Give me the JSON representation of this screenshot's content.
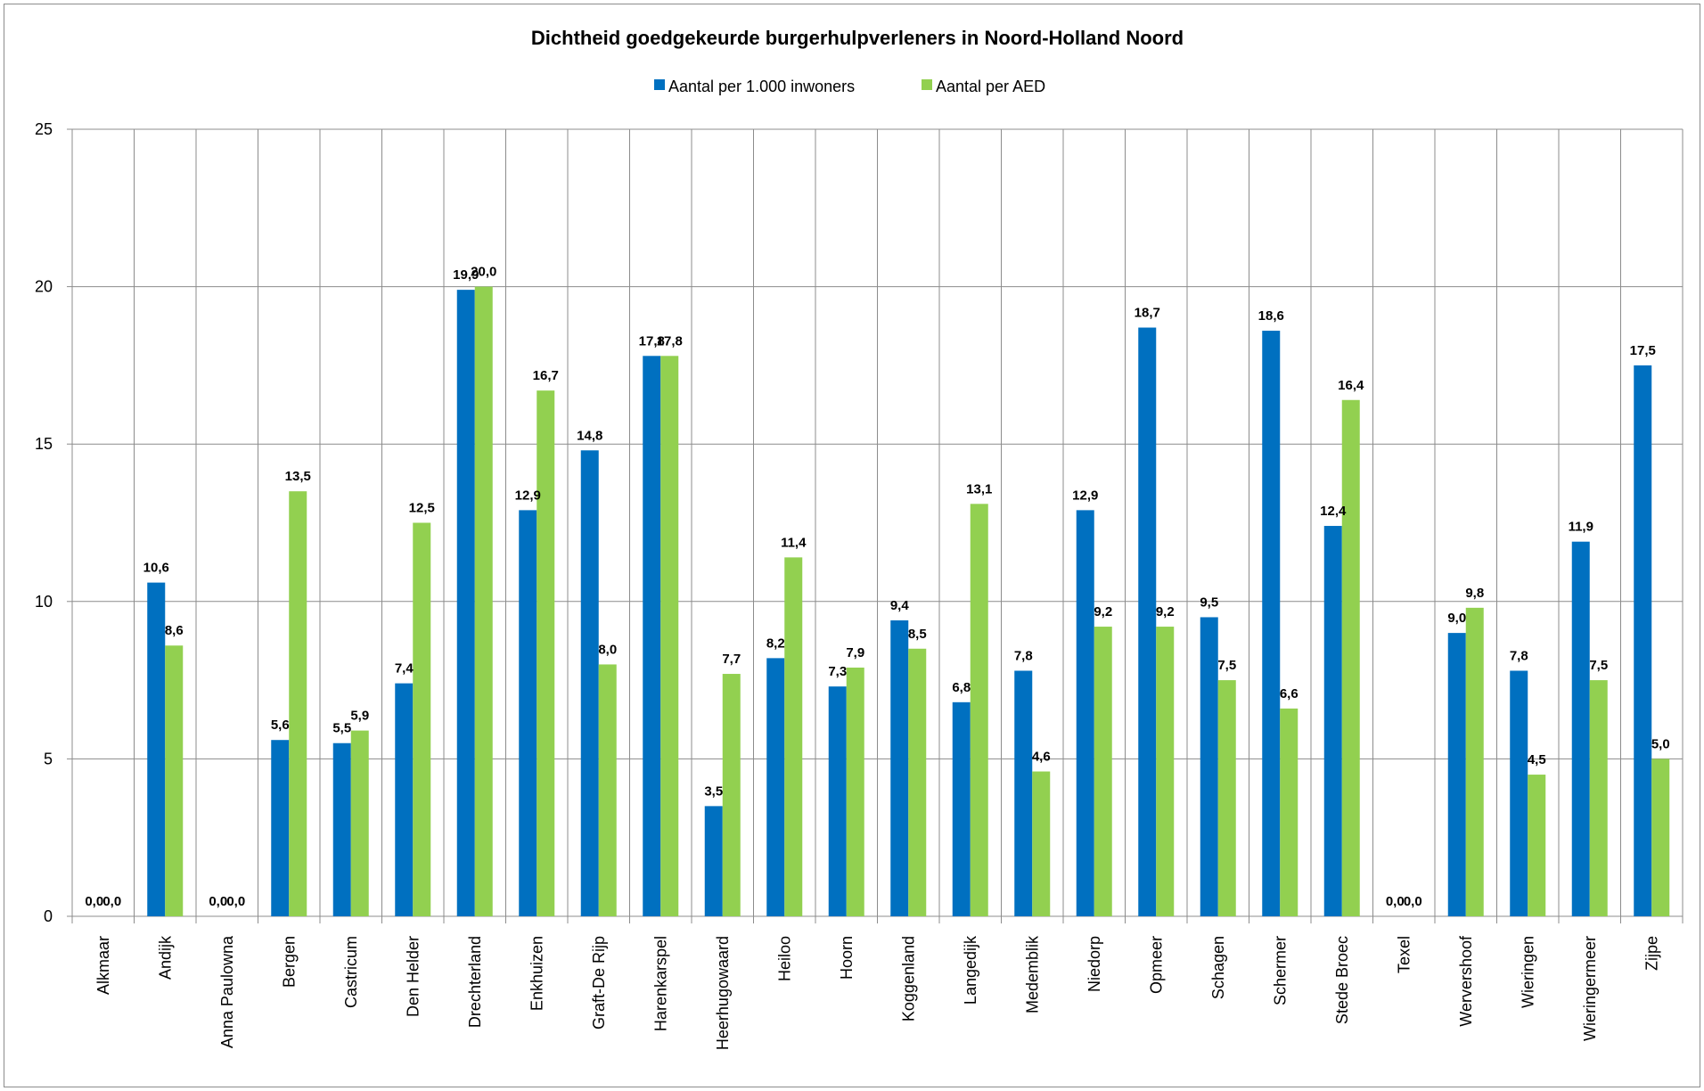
{
  "chart_data": {
    "type": "bar",
    "title": "Dichtheid goedgekeurde burgerhulpverleners in Noord-Holland Noord",
    "xlabel": "",
    "ylabel": "",
    "ylim": [
      0,
      25
    ],
    "yticks": [
      "0",
      "5",
      "10",
      "15",
      "20",
      "25"
    ],
    "ytick_values": [
      0,
      5,
      10,
      15,
      20,
      25
    ],
    "grid": true,
    "legend_position": "top",
    "categories": [
      "Alkmaar",
      "Andijk",
      "Anna Paulowna",
      "Bergen",
      "Castricum",
      "Den Helder",
      "Drechterland",
      "Enkhuizen",
      "Graft-De Rijp",
      "Harenkarspel",
      "Heerhugowaard",
      "Heiloo",
      "Hoorn",
      "Koggenland",
      "Langedijk",
      "Medemblik",
      "Niedorp",
      "Opmeer",
      "Schagen",
      "Schermer",
      "Stede Broec",
      "Texel",
      "Wervershoof",
      "Wieringen",
      "Wieringermeer",
      "Zijpe"
    ],
    "series": [
      {
        "name": "Aantal per 1.000 inwoners",
        "color": "#0070C0",
        "values": [
          0.0,
          10.6,
          0.0,
          5.6,
          5.5,
          7.4,
          19.9,
          12.9,
          14.8,
          17.8,
          3.5,
          8.2,
          7.3,
          9.4,
          6.8,
          7.8,
          12.9,
          18.7,
          9.5,
          18.6,
          12.4,
          0.0,
          9.0,
          7.8,
          11.9,
          17.5
        ],
        "labels": [
          "0,0",
          "10,6",
          "0,0",
          "5,6",
          "5,5",
          "7,4",
          "19,9",
          "12,9",
          "14,8",
          "17,8",
          "3,5",
          "8,2",
          "7,3",
          "9,4",
          "6,8",
          "7,8",
          "12,9",
          "18,7",
          "9,5",
          "18,6",
          "12,4",
          "0,0",
          "9,0",
          "7,8",
          "11,9",
          "17,5"
        ]
      },
      {
        "name": "Aantal per AED",
        "color": "#92D050",
        "values": [
          0.0,
          8.6,
          0.0,
          13.5,
          5.9,
          12.5,
          20.0,
          16.7,
          8.0,
          17.8,
          7.7,
          11.4,
          7.9,
          8.5,
          13.1,
          4.6,
          9.2,
          9.2,
          7.5,
          6.6,
          16.4,
          0.0,
          9.8,
          4.5,
          7.5,
          5.0
        ],
        "labels": [
          "0,0",
          "8,6",
          "0,0",
          "13,5",
          "5,9",
          "12,5",
          "20,0",
          "16,7",
          "8,0",
          "17,8",
          "7,7",
          "11,4",
          "7,9",
          "8,5",
          "13,1",
          "4,6",
          "9,2",
          "9,2",
          "7,5",
          "6,6",
          "16,4",
          "0,0",
          "9,8",
          "4,5",
          "7,5",
          "5,0"
        ]
      }
    ]
  }
}
